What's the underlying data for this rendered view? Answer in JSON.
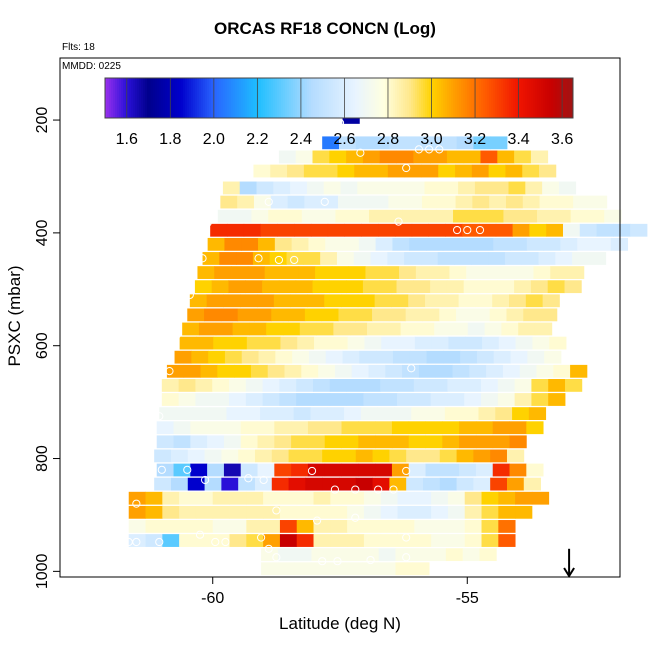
{
  "title": "ORCAS RF18 CONCN (Log)",
  "flts_label": "Flts: 18",
  "mmdd_label": "MMDD: 0225",
  "chart_data": {
    "type": "heatmap",
    "title": "ORCAS RF18 CONCN (Log)",
    "xlabel": "Latitude (deg N)",
    "ylabel": "PSXC (mbar)",
    "xlim": [
      -63,
      -52
    ],
    "ylim": [
      1010,
      90
    ],
    "x_ticks": [
      -60,
      -55
    ],
    "y_ticks": [
      200,
      400,
      600,
      800,
      1000
    ],
    "colorbar": {
      "range": [
        1.5,
        3.65
      ],
      "ticks": [
        1.6,
        1.8,
        2.0,
        2.2,
        2.4,
        2.6,
        2.8,
        3.0,
        3.2,
        3.4,
        3.6
      ],
      "stops": [
        [
          1.5,
          "#9a30ee"
        ],
        [
          1.6,
          "#2a10d8"
        ],
        [
          1.7,
          "#00008c"
        ],
        [
          1.85,
          "#0000cd"
        ],
        [
          2.0,
          "#2864ff"
        ],
        [
          2.2,
          "#1ebeff"
        ],
        [
          2.45,
          "#b4dcff"
        ],
        [
          2.65,
          "#e8f4ff"
        ],
        [
          2.78,
          "#ffffe0"
        ],
        [
          2.9,
          "#ffe88c"
        ],
        [
          3.0,
          "#ffd200"
        ],
        [
          3.1,
          "#ffa000"
        ],
        [
          3.25,
          "#ff5a00"
        ],
        [
          3.4,
          "#f01400"
        ],
        [
          3.55,
          "#c80000"
        ],
        [
          3.65,
          "#a01414"
        ]
      ]
    },
    "cell_size": {
      "lat": 0.33,
      "press": 22
    },
    "rows": [
      {
        "p": 195,
        "lat0": -57.45,
        "values": [
          1.75
        ]
      },
      {
        "p": 240,
        "lat0": -57.85,
        "values": [
          2.05,
          2.5,
          2.45,
          2.45,
          2.5,
          2.5,
          2.5,
          2.5,
          2.45,
          2.35,
          2.35
        ]
      },
      {
        "p": 265,
        "lat0": -58.7,
        "values": [
          2.7,
          2.75,
          2.95,
          3.0,
          3.05,
          3.1,
          3.15,
          3.15,
          3.1,
          3.1,
          3.05,
          3.05,
          3.25,
          3.05,
          2.95,
          2.85
        ]
      },
      {
        "p": 290,
        "lat0": -59.2,
        "values": [
          2.8,
          2.85,
          2.9,
          2.95,
          2.95,
          3.0,
          3.05,
          3.05,
          3.1,
          3.1,
          3.1,
          3.0,
          3.05,
          3.1,
          3.0,
          3.05,
          2.95,
          2.9
        ]
      },
      {
        "p": 320,
        "lat0": -59.8,
        "values": [
          2.85,
          2.45,
          2.55,
          2.6,
          2.65,
          2.7,
          2.75,
          2.7,
          2.75,
          2.75,
          2.75,
          2.75,
          2.8,
          2.8,
          2.85,
          2.9,
          2.9,
          2.95,
          2.85,
          2.75,
          2.7
        ]
      },
      {
        "p": 345,
        "lat0": -59.85,
        "values": [
          2.9,
          2.85,
          2.75,
          2.6,
          2.55,
          2.6,
          2.6,
          2.7,
          2.7,
          2.7,
          2.75,
          2.75,
          2.8,
          2.8,
          2.85,
          2.9,
          2.85,
          2.9,
          2.85,
          2.8,
          2.8,
          2.75,
          2.75
        ]
      },
      {
        "p": 370,
        "lat0": -59.9,
        "values": [
          2.7,
          2.7,
          2.75,
          2.8,
          2.8,
          2.75,
          2.75,
          2.8,
          2.8,
          2.85,
          2.85,
          2.85,
          2.85,
          2.85,
          2.95,
          2.95,
          2.95,
          2.9,
          2.9,
          2.85,
          2.85,
          2.8,
          2.8,
          2.75
        ]
      },
      {
        "p": 395,
        "lat0": -60.05,
        "values": [
          3.35,
          3.35,
          3.35,
          3.3,
          3.3,
          3.3,
          3.3,
          3.3,
          3.3,
          3.3,
          3.3,
          3.3,
          3.3,
          3.3,
          3.3,
          3.25,
          3.25,
          3.25,
          3.1,
          3.0,
          3.05,
          2.7,
          2.55,
          2.5,
          2.5,
          2.55
        ]
      },
      {
        "p": 420,
        "lat0": -60.1,
        "values": [
          3.05,
          3.15,
          3.15,
          3.05,
          2.9,
          2.85,
          2.8,
          2.75,
          2.75,
          2.7,
          2.6,
          2.5,
          2.45,
          2.45,
          2.45,
          2.45,
          2.45,
          2.5,
          2.5,
          2.55,
          2.55,
          2.6,
          2.65,
          2.65,
          2.6
        ]
      },
      {
        "p": 445,
        "lat0": -60.2,
        "values": [
          3.05,
          3.15,
          3.15,
          3.05,
          3.0,
          2.95,
          2.95,
          2.85,
          2.75,
          2.7,
          2.65,
          2.6,
          2.55,
          2.55,
          2.5,
          2.5,
          2.5,
          2.5,
          2.55,
          2.55,
          2.6,
          2.65,
          2.7,
          2.7
        ]
      },
      {
        "p": 470,
        "lat0": -60.3,
        "values": [
          3.05,
          3.1,
          3.1,
          3.1,
          3.05,
          3.05,
          3.05,
          3.0,
          3.0,
          3.0,
          2.95,
          2.95,
          2.9,
          2.85,
          2.85,
          2.8,
          2.75,
          2.75,
          2.75,
          2.75,
          2.8,
          2.85,
          2.85
        ]
      },
      {
        "p": 495,
        "lat0": -60.35,
        "values": [
          3.0,
          3.05,
          3.1,
          3.1,
          3.05,
          3.05,
          3.05,
          3.0,
          3.0,
          3.0,
          2.95,
          2.95,
          2.9,
          2.9,
          2.85,
          2.85,
          2.8,
          2.8,
          2.8,
          2.85,
          2.9,
          2.95,
          2.9
        ]
      },
      {
        "p": 520,
        "lat0": -60.45,
        "values": [
          3.05,
          3.1,
          3.1,
          3.1,
          3.1,
          3.05,
          3.05,
          3.05,
          3.0,
          3.0,
          3.0,
          2.95,
          2.95,
          2.9,
          2.85,
          2.85,
          2.8,
          2.8,
          2.85,
          2.9,
          2.95,
          2.9
        ]
      },
      {
        "p": 545,
        "lat0": -60.5,
        "values": [
          3.1,
          3.15,
          3.15,
          3.1,
          3.1,
          3.05,
          3.05,
          3.0,
          3.0,
          2.95,
          2.95,
          2.9,
          2.9,
          2.85,
          2.85,
          2.8,
          2.75,
          2.75,
          2.8,
          2.85,
          2.9,
          2.9
        ]
      },
      {
        "p": 570,
        "lat0": -60.6,
        "values": [
          3.05,
          3.1,
          3.1,
          3.05,
          3.05,
          3.0,
          3.0,
          2.95,
          2.95,
          2.9,
          2.9,
          2.85,
          2.85,
          2.8,
          2.8,
          2.75,
          2.75,
          2.7,
          2.75,
          2.8,
          2.85,
          2.85
        ]
      },
      {
        "p": 595,
        "lat0": -60.65,
        "values": [
          3.05,
          3.05,
          3.0,
          3.0,
          2.95,
          2.95,
          2.9,
          2.85,
          2.8,
          2.8,
          2.75,
          2.7,
          2.65,
          2.65,
          2.6,
          2.6,
          2.55,
          2.55,
          2.6,
          2.65,
          2.7,
          2.75,
          2.8
        ]
      },
      {
        "p": 620,
        "lat0": -60.75,
        "values": [
          3.1,
          3.05,
          3.0,
          2.95,
          2.9,
          2.85,
          2.8,
          2.75,
          2.7,
          2.65,
          2.6,
          2.55,
          2.55,
          2.5,
          2.5,
          2.45,
          2.45,
          2.5,
          2.55,
          2.6,
          2.65,
          2.7,
          2.75
        ]
      },
      {
        "p": 645,
        "lat0": -60.9,
        "values": [
          3.1,
          3.1,
          3.05,
          3.0,
          3.0,
          2.95,
          2.9,
          2.85,
          2.8,
          2.75,
          2.7,
          2.65,
          2.6,
          2.55,
          2.5,
          2.45,
          2.45,
          2.5,
          2.55,
          2.6,
          2.65,
          2.7,
          2.75,
          2.8,
          3.05
        ]
      },
      {
        "p": 670,
        "lat0": -61.0,
        "values": [
          2.85,
          2.9,
          2.85,
          2.8,
          2.75,
          2.7,
          2.65,
          2.6,
          2.55,
          2.5,
          2.45,
          2.45,
          2.45,
          2.5,
          2.5,
          2.55,
          2.55,
          2.6,
          2.6,
          2.65,
          2.7,
          2.75,
          2.95,
          3.05,
          2.95
        ]
      },
      {
        "p": 695,
        "lat0": -61.0,
        "values": [
          2.8,
          2.75,
          2.7,
          2.7,
          2.65,
          2.6,
          2.55,
          2.5,
          2.45,
          2.45,
          2.45,
          2.45,
          2.5,
          2.5,
          2.55,
          2.55,
          2.6,
          2.6,
          2.65,
          2.7,
          2.75,
          2.85,
          2.95,
          3.05
        ]
      },
      {
        "p": 720,
        "lat0": -61.05,
        "values": [
          2.7,
          2.7,
          2.7,
          2.7,
          2.65,
          2.65,
          2.6,
          2.6,
          2.55,
          2.6,
          2.6,
          2.65,
          2.7,
          2.7,
          2.7,
          2.75,
          2.75,
          2.8,
          2.8,
          2.85,
          2.9,
          3.0,
          3.05
        ]
      },
      {
        "p": 745,
        "lat0": -61.1,
        "values": [
          2.65,
          2.7,
          2.75,
          2.75,
          2.75,
          2.8,
          2.8,
          2.85,
          2.85,
          2.9,
          2.9,
          2.95,
          2.95,
          2.95,
          3.0,
          3.0,
          3.0,
          3.0,
          3.05,
          3.05,
          3.1,
          3.1,
          3.0
        ]
      },
      {
        "p": 770,
        "lat0": -61.1,
        "values": [
          2.55,
          2.5,
          2.6,
          2.65,
          2.7,
          2.8,
          2.85,
          2.9,
          2.95,
          2.95,
          3.0,
          3.0,
          3.05,
          3.05,
          3.05,
          3.0,
          3.0,
          3.05,
          3.1,
          3.1,
          3.1,
          3.15
        ]
      },
      {
        "p": 795,
        "lat0": -61.15,
        "values": [
          2.55,
          2.6,
          2.65,
          2.7,
          2.75,
          2.8,
          2.85,
          2.9,
          2.95,
          2.95,
          3.0,
          3.0,
          3.05,
          3.0,
          2.95,
          2.9,
          2.9,
          2.95,
          3.05,
          3.1,
          3.15,
          2.85
        ]
      },
      {
        "p": 820,
        "lat0": -61.1,
        "values": [
          2.45,
          2.3,
          1.85,
          2.45,
          1.65,
          2.55,
          2.65,
          3.3,
          3.35,
          3.5,
          3.5,
          3.5,
          3.5,
          3.5,
          3.1,
          2.6,
          2.5,
          2.5,
          2.55,
          2.6,
          3.35,
          3.15,
          2.8
        ]
      },
      {
        "p": 845,
        "lat0": -61.15,
        "values": [
          2.55,
          2.45,
          1.85,
          2.45,
          1.6,
          2.5,
          2.6,
          3.35,
          3.45,
          3.5,
          3.5,
          3.5,
          3.55,
          3.45,
          3.05,
          2.55,
          2.5,
          2.45,
          2.55,
          2.6,
          3.3,
          3.1,
          2.85
        ]
      },
      {
        "p": 870,
        "lat0": -61.65,
        "values": [
          3.1,
          3.05,
          2.85,
          2.8,
          2.8,
          2.85,
          2.85,
          2.85,
          2.8,
          2.8,
          2.8,
          2.85,
          2.8,
          2.8,
          2.75,
          2.7,
          2.65,
          2.65,
          2.7,
          2.75,
          2.9,
          3.0,
          3.05,
          3.1,
          3.1
        ]
      },
      {
        "p": 895,
        "lat0": -61.65,
        "values": [
          3.1,
          3.05,
          2.9,
          2.85,
          2.85,
          2.85,
          2.85,
          2.85,
          2.85,
          2.8,
          2.8,
          2.8,
          2.8,
          2.75,
          2.7,
          2.65,
          2.6,
          2.6,
          2.65,
          2.7,
          2.85,
          2.95,
          3.05,
          3.05
        ]
      },
      {
        "p": 920,
        "lat0": -61.65,
        "values": [
          2.75,
          2.8,
          2.8,
          2.8,
          2.8,
          2.75,
          2.75,
          2.85,
          2.85,
          3.3,
          3.05,
          2.85,
          2.85,
          2.8,
          2.8,
          2.8,
          2.8,
          2.75,
          2.75,
          2.75,
          2.8,
          2.95,
          3.2
        ]
      },
      {
        "p": 945,
        "lat0": -61.65,
        "values": [
          2.6,
          2.55,
          2.3,
          2.8,
          2.8,
          2.8,
          2.9,
          2.95,
          3.1,
          3.55,
          3.35,
          2.85,
          2.85,
          2.85,
          2.8,
          2.8,
          2.8,
          2.8,
          2.75,
          2.75,
          2.8,
          2.95,
          3.25
        ]
      },
      {
        "p": 970,
        "lat0": -59.05,
        "values": [
          2.75,
          2.7,
          2.7,
          2.75,
          2.75,
          2.75,
          2.75,
          2.7,
          2.75,
          2.75,
          2.75,
          2.8,
          2.75,
          2.8
        ]
      },
      {
        "p": 995,
        "lat0": -59.05,
        "values": [
          2.75,
          2.75,
          2.75,
          2.75,
          2.75,
          2.75,
          2.75,
          2.75,
          2.8,
          2.8
        ]
      }
    ],
    "flight_markers": [
      [
        -57.5,
        205
      ],
      [
        -57.1,
        258
      ],
      [
        -55.95,
        252
      ],
      [
        -55.75,
        252
      ],
      [
        -55.55,
        252
      ],
      [
        -56.2,
        285
      ],
      [
        -58.9,
        345
      ],
      [
        -57.8,
        345
      ],
      [
        -56.35,
        380
      ],
      [
        -55.2,
        395
      ],
      [
        -55.0,
        395
      ],
      [
        -54.75,
        395
      ],
      [
        -60.1,
        382
      ],
      [
        -60.2,
        445
      ],
      [
        -59.1,
        445
      ],
      [
        -58.7,
        448
      ],
      [
        -58.4,
        448
      ],
      [
        -60.45,
        510
      ],
      [
        -60.7,
        580
      ],
      [
        -60.85,
        645
      ],
      [
        -56.1,
        640
      ],
      [
        -61.05,
        725
      ],
      [
        -61.25,
        800
      ],
      [
        -61.0,
        820
      ],
      [
        -60.5,
        820
      ],
      [
        -60.15,
        838
      ],
      [
        -59.3,
        835
      ],
      [
        -59.0,
        838
      ],
      [
        -58.05,
        822
      ],
      [
        -56.2,
        822
      ],
      [
        -57.6,
        855
      ],
      [
        -57.2,
        855
      ],
      [
        -56.75,
        855
      ],
      [
        -56.45,
        855
      ],
      [
        -61.5,
        880
      ],
      [
        -58.75,
        892
      ],
      [
        -57.95,
        910
      ],
      [
        -57.2,
        905
      ],
      [
        -61.8,
        948
      ],
      [
        -61.65,
        948
      ],
      [
        -61.5,
        948
      ],
      [
        -61.05,
        948
      ],
      [
        -60.25,
        935
      ],
      [
        -59.95,
        948
      ],
      [
        -59.75,
        948
      ],
      [
        -59.05,
        940
      ],
      [
        -58.9,
        960
      ],
      [
        -58.75,
        975
      ],
      [
        -57.85,
        982
      ],
      [
        -57.55,
        982
      ],
      [
        -56.9,
        980
      ],
      [
        -56.2,
        975
      ],
      [
        -56.2,
        940
      ]
    ],
    "arrow": {
      "lat": -53.0,
      "from_p": 960,
      "to_p": 1010
    }
  }
}
